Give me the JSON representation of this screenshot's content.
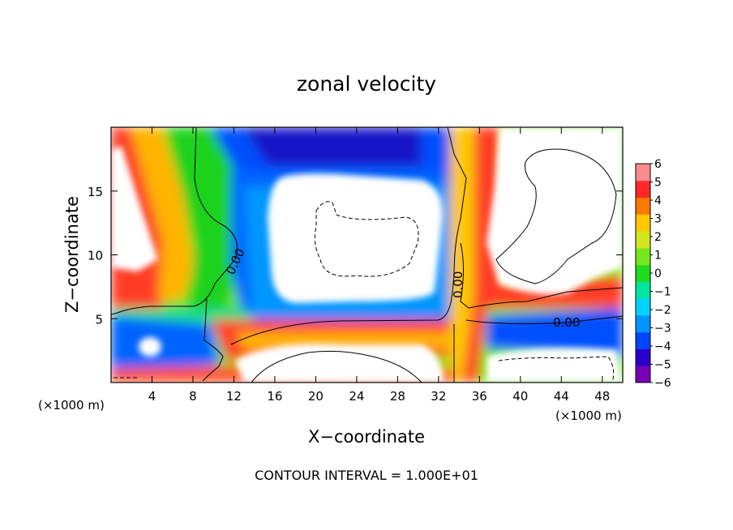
{
  "chart_data": {
    "type": "heatmap",
    "title": "zonal velocity",
    "xlabel": "X−coordinate",
    "ylabel": "Z−coordinate",
    "x_unit_left": "(×1000 m)",
    "x_unit_right": "(×1000 m)",
    "footer": "CONTOUR INTERVAL = 1.000E+01",
    "xlim": [
      0,
      50
    ],
    "ylim": [
      0,
      20
    ],
    "x_ticks": [
      4,
      8,
      12,
      16,
      20,
      24,
      28,
      32,
      36,
      40,
      44,
      48
    ],
    "x_tick_labels": [
      "4",
      "8",
      "12",
      "16",
      "20",
      "24",
      "28",
      "32",
      "36",
      "40",
      "44",
      "48"
    ],
    "y_ticks": [
      5,
      10,
      15
    ],
    "y_tick_labels": [
      "5",
      "10",
      "15"
    ],
    "colorbar": {
      "min": -6,
      "max": 6,
      "tick_labels": [
        "6",
        "5",
        "4",
        "3",
        "2",
        "1",
        "0",
        "−1",
        "−2",
        "−3",
        "−4",
        "−5",
        "−6"
      ],
      "colors": [
        "#7a00b4",
        "#2a00c8",
        "#0046ff",
        "#0096ff",
        "#00d2ff",
        "#00e6a0",
        "#1edc1e",
        "#78e61e",
        "#d2e61e",
        "#ffc800",
        "#ff7800",
        "#ff2828",
        "#ff8c8c"
      ]
    },
    "contour_labels": [
      "0.00",
      "0.00",
      "0.00"
    ],
    "grid": false,
    "legend": "colorbar-right"
  }
}
